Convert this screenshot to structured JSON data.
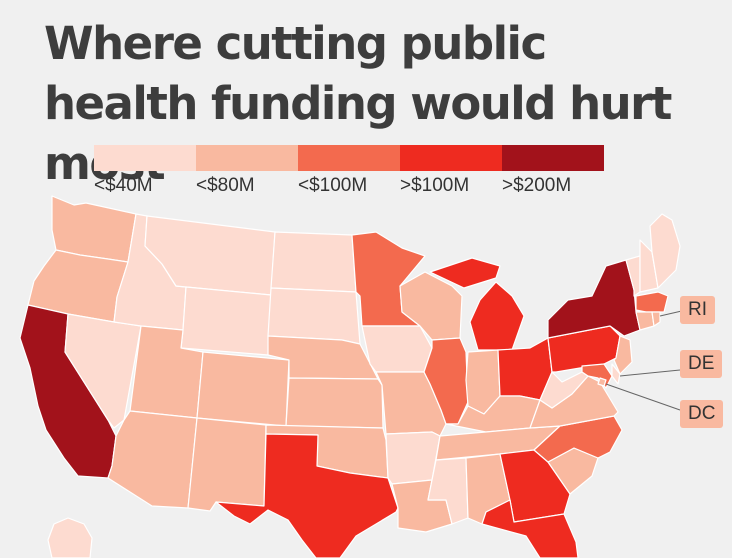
{
  "title": "Where cutting public health funding would hurt most",
  "legend": {
    "bins": [
      {
        "label": "<$40M",
        "color": "#fddbd0"
      },
      {
        "label": "<$80M",
        "color": "#f9b9a0"
      },
      {
        "label": "<$100M",
        "color": "#f36a4e"
      },
      {
        "label": ">$100M",
        "color": "#ee2b20"
      },
      {
        "label": ">$200M",
        "color": "#a2121b"
      }
    ]
  },
  "callouts": {
    "ri": "RI",
    "de": "DE",
    "dc": "DC"
  },
  "states": [
    {
      "name": "Washington",
      "bin": 1
    },
    {
      "name": "Oregon",
      "bin": 1
    },
    {
      "name": "California",
      "bin": 4
    },
    {
      "name": "Nevada",
      "bin": 0
    },
    {
      "name": "Idaho",
      "bin": 0
    },
    {
      "name": "Montana",
      "bin": 0
    },
    {
      "name": "Wyoming",
      "bin": 0
    },
    {
      "name": "Utah",
      "bin": 1
    },
    {
      "name": "Colorado",
      "bin": 1
    },
    {
      "name": "Arizona",
      "bin": 1
    },
    {
      "name": "New Mexico",
      "bin": 1
    },
    {
      "name": "North Dakota",
      "bin": 0
    },
    {
      "name": "South Dakota",
      "bin": 0
    },
    {
      "name": "Nebraska",
      "bin": 1
    },
    {
      "name": "Kansas",
      "bin": 1
    },
    {
      "name": "Oklahoma",
      "bin": 1
    },
    {
      "name": "Texas",
      "bin": 3
    },
    {
      "name": "Minnesota",
      "bin": 2
    },
    {
      "name": "Iowa",
      "bin": 0
    },
    {
      "name": "Missouri",
      "bin": 1
    },
    {
      "name": "Arkansas",
      "bin": 0
    },
    {
      "name": "Louisiana",
      "bin": 1
    },
    {
      "name": "Wisconsin",
      "bin": 1
    },
    {
      "name": "Illinois",
      "bin": 2
    },
    {
      "name": "Michigan",
      "bin": 3
    },
    {
      "name": "Indiana",
      "bin": 1
    },
    {
      "name": "Ohio",
      "bin": 3
    },
    {
      "name": "Kentucky",
      "bin": 1
    },
    {
      "name": "Tennessee",
      "bin": 1
    },
    {
      "name": "Mississippi",
      "bin": 0
    },
    {
      "name": "Alabama",
      "bin": 1
    },
    {
      "name": "Georgia",
      "bin": 3
    },
    {
      "name": "Florida",
      "bin": 3
    },
    {
      "name": "South Carolina",
      "bin": 1
    },
    {
      "name": "North Carolina",
      "bin": 2
    },
    {
      "name": "Virginia",
      "bin": 1
    },
    {
      "name": "West Virginia",
      "bin": 0
    },
    {
      "name": "Pennsylvania",
      "bin": 3
    },
    {
      "name": "New York",
      "bin": 4
    },
    {
      "name": "Vermont",
      "bin": 0
    },
    {
      "name": "New Hampshire",
      "bin": 0
    },
    {
      "name": "Maine",
      "bin": 0
    },
    {
      "name": "Massachusetts",
      "bin": 2
    },
    {
      "name": "Connecticut",
      "bin": 1
    },
    {
      "name": "New Jersey",
      "bin": 1
    },
    {
      "name": "Maryland",
      "bin": 2
    },
    {
      "name": "Delaware",
      "bin": 0
    },
    {
      "name": "Rhode Island",
      "bin": 1
    },
    {
      "name": "District of Columbia",
      "bin": 1
    },
    {
      "name": "Hawaii",
      "bin": 0
    }
  ]
}
